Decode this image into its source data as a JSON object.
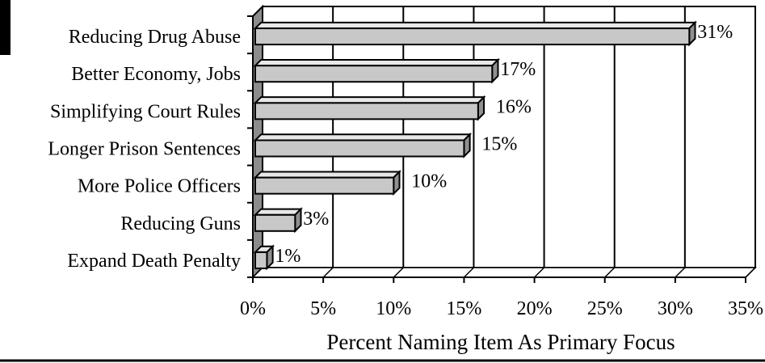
{
  "chart_data": {
    "type": "bar",
    "orientation": "horizontal",
    "categories": [
      "Reducing Drug Abuse",
      "Better Economy, Jobs",
      "Simplifying Court Rules",
      "Longer Prison Sentences",
      "More Police Officers",
      "Reducing Guns",
      "Expand Death Penalty"
    ],
    "values": [
      31,
      17,
      16,
      15,
      10,
      3,
      1
    ],
    "data_labels": [
      "31%",
      "17%",
      "16%",
      "15%",
      "10%",
      "3%",
      "1%"
    ],
    "xlim": [
      0,
      35
    ],
    "x_ticks": [
      0,
      5,
      10,
      15,
      20,
      25,
      30,
      35
    ],
    "x_tick_labels": [
      "0%",
      "5%",
      "10%",
      "15%",
      "20%",
      "25%",
      "30%",
      "35%"
    ],
    "xlabel": "Percent Naming Item As Primary Focus",
    "ylabel": "",
    "title": "",
    "grid": "vertical",
    "style": "3d",
    "colors": {
      "bar_front": "#c8c8c8",
      "bar_top": "#e8e8e8",
      "bar_side": "#909090",
      "wall": "#8c8c8c",
      "outline": "#000000"
    }
  }
}
